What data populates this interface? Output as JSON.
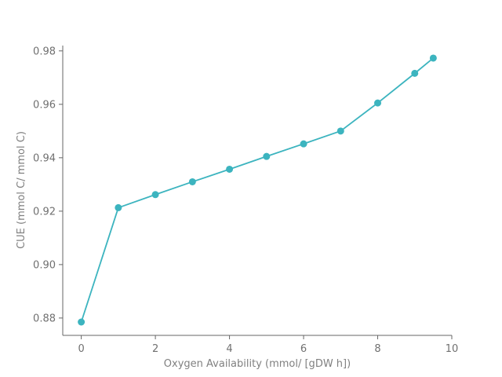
{
  "chart_data": {
    "type": "line",
    "title": "",
    "xlabel": "Oxygen Availability (mmol/ [gDW h])",
    "ylabel": "CUE (mmol C/ mmol C)",
    "xlim": [
      -0.5,
      10
    ],
    "ylim": [
      0.8735,
      0.982
    ],
    "x_ticks": [
      0,
      2,
      4,
      6,
      8,
      10
    ],
    "y_ticks": [
      0.88,
      0.9,
      0.92,
      0.94,
      0.96,
      0.98
    ],
    "x_tick_labels": [
      "0",
      "2",
      "4",
      "6",
      "8",
      "10"
    ],
    "y_tick_labels": [
      "0.88",
      "0.90",
      "0.92",
      "0.94",
      "0.96",
      "0.98"
    ],
    "grid": false,
    "legend": "none",
    "series": [
      {
        "color": "#3cb4bf",
        "x": [
          0,
          1,
          2,
          3,
          4,
          5,
          6,
          7,
          8,
          9,
          9.5
        ],
        "y": [
          0.8785,
          0.9213,
          0.9262,
          0.931,
          0.9357,
          0.9405,
          0.9452,
          0.95,
          0.9605,
          0.9716,
          0.9773
        ]
      }
    ]
  }
}
